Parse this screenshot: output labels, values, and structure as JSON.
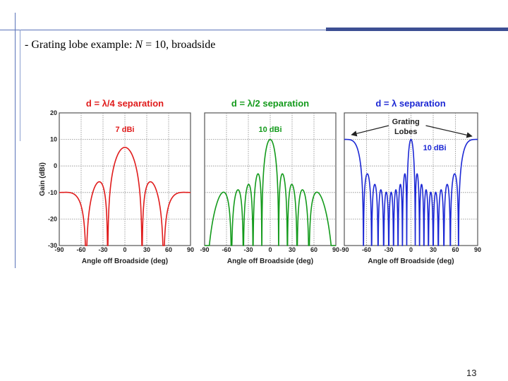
{
  "slide": {
    "heading_prefix": "- Grating lobe example: ",
    "heading_var": "N",
    "heading_suffix": " = 10, broadside",
    "page_number": "13"
  },
  "theme": {
    "line_color": "#5a73b8",
    "border_color": "#2f3f78"
  },
  "figure": {
    "ylabel": "Gain (dBi)",
    "xlabel": "Angle off Broadside (deg)",
    "annotation_grating": "Grating",
    "annotation_lobes": "Lobes"
  },
  "chart_data": [
    {
      "type": "line",
      "title": "d = λ/4 separation",
      "color": "#e01b1b",
      "peak_label": "7 dBi",
      "spacing_wavelengths": 0.25,
      "elements": 10,
      "peak_gain_dbi": 7,
      "xlim": [
        -90,
        90
      ],
      "ylim": [
        -30,
        20
      ],
      "xticks": [
        "-90",
        "-60",
        "-30",
        "0",
        "30",
        "60",
        "90"
      ],
      "yticks": [
        "20",
        "10",
        "0",
        "-10",
        "-20",
        "-30"
      ],
      "grid": true
    },
    {
      "type": "line",
      "title": "d = λ/2 separation",
      "color": "#139a1b",
      "peak_label": "10 dBi",
      "spacing_wavelengths": 0.5,
      "elements": 10,
      "peak_gain_dbi": 10,
      "xlim": [
        -90,
        90
      ],
      "ylim": [
        -30,
        20
      ],
      "xticks": [
        "-90",
        "-60",
        "-30",
        "0",
        "30",
        "60",
        "90"
      ],
      "grid": true
    },
    {
      "type": "line",
      "title": "d = λ separation",
      "color": "#1c28d4",
      "peak_label": "10 dBi",
      "spacing_wavelengths": 1,
      "elements": 10,
      "peak_gain_dbi": 10,
      "xlim": [
        -90,
        90
      ],
      "ylim": [
        -30,
        20
      ],
      "xticks": [
        "-90",
        "-60",
        "-30",
        "0",
        "30",
        "60",
        "90"
      ],
      "grid": true,
      "annotation": "Grating Lobes"
    }
  ]
}
